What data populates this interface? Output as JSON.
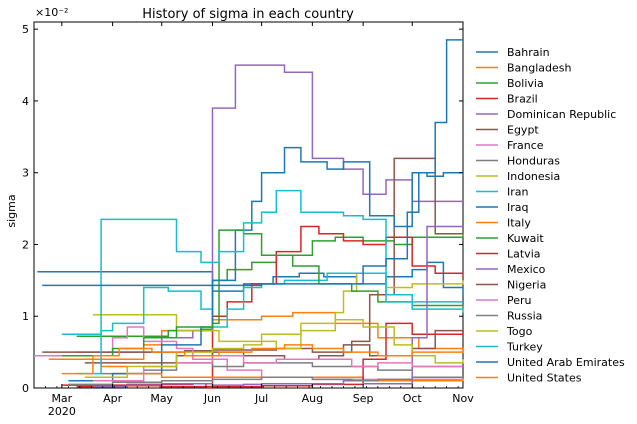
{
  "chart_data": {
    "type": "line",
    "title": "History of sigma in each country",
    "xlabel": "",
    "ylabel": "sigma",
    "y_multiplier_label": "×10⁻²",
    "xlim": [
      "2020-02-13",
      "2020-11-01"
    ],
    "ylim": [
      0,
      5.1
    ],
    "x_ticks": [
      {
        "date": "2020-03-01",
        "label": "Mar",
        "sublabel": "2020"
      },
      {
        "date": "2020-04-01",
        "label": "Apr"
      },
      {
        "date": "2020-05-01",
        "label": "May"
      },
      {
        "date": "2020-06-01",
        "label": "Jun"
      },
      {
        "date": "2020-07-01",
        "label": "Jul"
      },
      {
        "date": "2020-08-01",
        "label": "Aug"
      },
      {
        "date": "2020-09-01",
        "label": "Sep"
      },
      {
        "date": "2020-10-01",
        "label": "Oct"
      },
      {
        "date": "2020-11-01",
        "label": "Nov"
      }
    ],
    "y_ticks": [
      0,
      1,
      2,
      3,
      4,
      5
    ],
    "grid": false,
    "legend_position": "outside-right",
    "series": [
      {
        "name": "Bahrain",
        "color": "#1f77b4",
        "drawstyle": "steps-post",
        "x": [
          "2020-02-15",
          "2020-05-01",
          "2020-06-01",
          "2020-06-20",
          "2020-07-08",
          "2020-07-24",
          "2020-08-08",
          "2020-08-28",
          "2020-09-15",
          "2020-10-01",
          "2020-10-10",
          "2020-10-20",
          "2020-11-01"
        ],
        "y": [
          1.62,
          1.62,
          1.35,
          1.45,
          1.55,
          1.6,
          1.55,
          1.45,
          1.55,
          1.65,
          1.75,
          1.4,
          1.3
        ]
      },
      {
        "name": "Bangladesh",
        "color": "#ff7f0e",
        "drawstyle": "steps-post",
        "x": [
          "2020-03-20",
          "2020-04-20",
          "2020-05-01",
          "2020-06-01",
          "2020-07-01",
          "2020-07-20",
          "2020-08-15",
          "2020-09-10",
          "2020-10-05",
          "2020-11-01"
        ],
        "y": [
          0.4,
          0.6,
          0.8,
          0.95,
          1.0,
          1.05,
          0.9,
          0.7,
          0.55,
          0.5
        ]
      },
      {
        "name": "Bolivia",
        "color": "#2ca02c",
        "drawstyle": "steps-post",
        "x": [
          "2020-03-10",
          "2020-04-05",
          "2020-05-05",
          "2020-05-25",
          "2020-06-01",
          "2020-06-10",
          "2020-06-25",
          "2020-07-10",
          "2020-08-01",
          "2020-08-15",
          "2020-09-01",
          "2020-09-20",
          "2020-10-01",
          "2020-11-01"
        ],
        "y": [
          0.72,
          0.72,
          0.8,
          0.82,
          1.5,
          1.65,
          1.75,
          1.85,
          2.05,
          2.1,
          2.05,
          2.0,
          2.1,
          2.15
        ]
      },
      {
        "name": "Brazil",
        "color": "#d62728",
        "drawstyle": "steps-post",
        "x": [
          "2020-03-01",
          "2020-04-10",
          "2020-05-20",
          "2020-05-28",
          "2020-06-01",
          "2020-06-10",
          "2020-06-25",
          "2020-07-10",
          "2020-07-25",
          "2020-08-05",
          "2020-08-20",
          "2020-09-01",
          "2020-09-15",
          "2020-10-01",
          "2020-10-15",
          "2020-11-01"
        ],
        "y": [
          0.04,
          0.05,
          0.06,
          0.0,
          1.0,
          1.2,
          1.45,
          1.9,
          2.25,
          2.15,
          2.05,
          2.0,
          2.1,
          1.7,
          1.6,
          1.55
        ]
      },
      {
        "name": "Dominican Republic",
        "color": "#9467bd",
        "drawstyle": "steps-post",
        "x": [
          "2020-03-10",
          "2020-04-10",
          "2020-05-01",
          "2020-05-20",
          "2020-06-01",
          "2020-06-15",
          "2020-07-01",
          "2020-07-15",
          "2020-08-01",
          "2020-08-20",
          "2020-09-01",
          "2020-09-15",
          "2020-10-01",
          "2020-11-01"
        ],
        "y": [
          0.5,
          0.5,
          0.7,
          0.8,
          3.9,
          4.5,
          4.5,
          4.4,
          3.2,
          3.05,
          2.7,
          2.9,
          2.6,
          2.6
        ]
      },
      {
        "name": "Egypt",
        "color": "#8c564b",
        "drawstyle": "steps-post",
        "x": [
          "2020-02-18",
          "2020-03-15",
          "2020-04-15",
          "2020-05-15",
          "2020-06-01",
          "2020-06-20",
          "2020-07-10",
          "2020-08-01",
          "2020-08-25",
          "2020-09-05",
          "2020-09-20",
          "2020-10-01",
          "2020-10-15",
          "2020-11-01"
        ],
        "y": [
          0.5,
          0.5,
          0.5,
          0.52,
          0.53,
          0.53,
          0.55,
          0.5,
          0.65,
          1.3,
          3.2,
          3.2,
          2.15,
          2.15
        ]
      },
      {
        "name": "France",
        "color": "#e377c2",
        "drawstyle": "steps-post",
        "x": [
          "2020-02-13",
          "2020-03-25",
          "2020-04-01",
          "2020-04-10",
          "2020-04-20",
          "2020-05-10",
          "2020-05-20",
          "2020-06-10",
          "2020-07-01",
          "2020-08-01",
          "2020-09-01",
          "2020-10-01",
          "2020-11-01"
        ],
        "y": [
          0.45,
          0.45,
          0.7,
          0.85,
          0.65,
          0.55,
          0.4,
          0.25,
          0.15,
          0.12,
          0.12,
          0.12,
          0.1
        ]
      },
      {
        "name": "Honduras",
        "color": "#7f7f7f",
        "drawstyle": "steps-post",
        "x": [
          "2020-03-25",
          "2020-04-20",
          "2020-05-10",
          "2020-06-01",
          "2020-06-20",
          "2020-07-10",
          "2020-08-01",
          "2020-08-20",
          "2020-09-10",
          "2020-10-01",
          "2020-11-01"
        ],
        "y": [
          0.2,
          0.25,
          0.35,
          0.3,
          0.35,
          0.35,
          0.3,
          0.3,
          0.25,
          0.3,
          0.3
        ]
      },
      {
        "name": "Indonesia",
        "color": "#bcbd22",
        "drawstyle": "steps-post",
        "x": [
          "2020-03-20",
          "2020-04-15",
          "2020-05-10",
          "2020-06-05",
          "2020-07-10",
          "2020-07-25",
          "2020-08-15",
          "2020-08-20",
          "2020-08-28",
          "2020-09-15",
          "2020-10-01",
          "2020-11-01"
        ],
        "y": [
          1.02,
          1.02,
          0.8,
          0.65,
          0.55,
          0.8,
          1.05,
          1.35,
          1.6,
          1.4,
          1.45,
          1.5
        ]
      },
      {
        "name": "Iran",
        "color": "#17becf",
        "drawstyle": "steps-post",
        "x": [
          "2020-03-01",
          "2020-03-25",
          "2020-04-01",
          "2020-04-20",
          "2020-05-05",
          "2020-05-25",
          "2020-06-01",
          "2020-06-10",
          "2020-06-20",
          "2020-07-01",
          "2020-07-15",
          "2020-08-01",
          "2020-08-10",
          "2020-09-01",
          "2020-09-15",
          "2020-10-01",
          "2020-11-01"
        ],
        "y": [
          0.75,
          0.8,
          0.9,
          1.4,
          1.35,
          1.1,
          0.85,
          1.1,
          1.4,
          1.45,
          1.5,
          1.5,
          1.6,
          1.6,
          1.3,
          1.2,
          1.2
        ]
      },
      {
        "name": "Iraq",
        "color": "#1f77b4",
        "drawstyle": "steps-post",
        "x": [
          "2020-03-05",
          "2020-04-01",
          "2020-05-01",
          "2020-05-25",
          "2020-06-01",
          "2020-06-15",
          "2020-06-25",
          "2020-07-01",
          "2020-07-15",
          "2020-07-25",
          "2020-08-10",
          "2020-08-20",
          "2020-09-05",
          "2020-09-20",
          "2020-10-01",
          "2020-10-10",
          "2020-10-20",
          "2020-11-01"
        ],
        "y": [
          0.1,
          0.2,
          0.6,
          0.85,
          1.5,
          2.2,
          2.6,
          3.0,
          3.35,
          3.15,
          3.05,
          3.15,
          2.4,
          2.25,
          3.0,
          2.95,
          3.0,
          2.95
        ]
      },
      {
        "name": "Italy",
        "color": "#ff7f0e",
        "drawstyle": "steps-post",
        "x": [
          "2020-02-22",
          "2020-03-10",
          "2020-03-25",
          "2020-04-10",
          "2020-05-01",
          "2020-06-01",
          "2020-07-01",
          "2020-08-01",
          "2020-09-01",
          "2020-10-01",
          "2020-11-01"
        ],
        "y": [
          0.4,
          0.4,
          0.3,
          0.2,
          0.15,
          0.15,
          0.15,
          0.15,
          0.1,
          0.1,
          0.1
        ]
      },
      {
        "name": "Kuwait",
        "color": "#2ca02c",
        "drawstyle": "steps-post",
        "x": [
          "2020-03-01",
          "2020-04-01",
          "2020-04-20",
          "2020-05-10",
          "2020-06-01",
          "2020-06-05",
          "2020-06-20",
          "2020-07-01",
          "2020-07-20",
          "2020-08-05",
          "2020-08-25",
          "2020-09-10",
          "2020-10-01",
          "2020-11-01"
        ],
        "y": [
          0.45,
          0.55,
          0.7,
          0.85,
          0.9,
          2.2,
          2.15,
          1.85,
          1.7,
          1.45,
          1.35,
          1.2,
          1.15,
          1.1
        ]
      },
      {
        "name": "Latvia",
        "color": "#d62728",
        "drawstyle": "steps-post",
        "x": [
          "2020-03-10",
          "2020-04-01",
          "2020-05-01",
          "2020-06-01",
          "2020-07-01",
          "2020-08-01",
          "2020-09-01",
          "2020-09-15",
          "2020-10-01",
          "2020-11-01"
        ],
        "y": [
          0.02,
          0.03,
          0.02,
          0.02,
          0.03,
          0.05,
          0.4,
          0.9,
          0.75,
          0.8
        ]
      },
      {
        "name": "Mexico",
        "color": "#9467bd",
        "drawstyle": "steps-post",
        "x": [
          "2020-03-20",
          "2020-04-10",
          "2020-05-01",
          "2020-06-01",
          "2020-06-20",
          "2020-07-01",
          "2020-08-01",
          "2020-08-20",
          "2020-09-01",
          "2020-10-01",
          "2020-10-10",
          "2020-11-01"
        ],
        "y": [
          0.02,
          0.04,
          0.06,
          0.04,
          0.05,
          0.06,
          0.06,
          0.1,
          0.06,
          0.7,
          2.25,
          2.25
        ]
      },
      {
        "name": "Nigeria",
        "color": "#8c564b",
        "drawstyle": "steps-post",
        "x": [
          "2020-03-15",
          "2020-04-15",
          "2020-05-10",
          "2020-06-01",
          "2020-06-20",
          "2020-07-15",
          "2020-08-05",
          "2020-08-20",
          "2020-09-05",
          "2020-10-01",
          "2020-10-15",
          "2020-11-01"
        ],
        "y": [
          0.35,
          0.35,
          0.45,
          0.5,
          0.45,
          0.4,
          0.45,
          0.6,
          0.45,
          0.55,
          0.8,
          0.75
        ]
      },
      {
        "name": "Peru",
        "color": "#e377c2",
        "drawstyle": "steps-post",
        "x": [
          "2020-03-20",
          "2020-04-20",
          "2020-05-10",
          "2020-06-01",
          "2020-06-20",
          "2020-07-10",
          "2020-08-01",
          "2020-08-25",
          "2020-09-10",
          "2020-10-01",
          "2020-11-01"
        ],
        "y": [
          0.1,
          0.3,
          0.35,
          0.45,
          0.35,
          0.4,
          0.4,
          0.3,
          0.35,
          0.3,
          0.3
        ]
      },
      {
        "name": "Russia",
        "color": "#7f7f7f",
        "drawstyle": "steps-post",
        "x": [
          "2020-03-05",
          "2020-04-01",
          "2020-05-01",
          "2020-06-01",
          "2020-07-01",
          "2020-08-01",
          "2020-08-25",
          "2020-09-10",
          "2020-10-01",
          "2020-11-01"
        ],
        "y": [
          0.05,
          0.08,
          0.1,
          0.12,
          0.15,
          0.12,
          0.1,
          0.12,
          0.15,
          0.15
        ]
      },
      {
        "name": "Togo",
        "color": "#bcbd22",
        "drawstyle": "steps-post",
        "x": [
          "2020-03-15",
          "2020-04-10",
          "2020-05-10",
          "2020-06-01",
          "2020-06-20",
          "2020-07-01",
          "2020-07-25",
          "2020-08-15",
          "2020-09-01",
          "2020-09-20",
          "2020-10-01",
          "2020-10-15",
          "2020-11-01"
        ],
        "y": [
          0.15,
          0.3,
          0.5,
          0.55,
          0.6,
          0.75,
          0.9,
          0.95,
          0.85,
          0.6,
          0.45,
          0.35,
          0.4
        ]
      },
      {
        "name": "Turkey",
        "color": "#17becf",
        "drawstyle": "steps-post",
        "x": [
          "2020-03-10",
          "2020-03-25",
          "2020-04-20",
          "2020-05-10",
          "2020-05-25",
          "2020-06-05",
          "2020-06-20",
          "2020-07-01",
          "2020-07-10",
          "2020-07-25",
          "2020-08-20",
          "2020-09-01",
          "2020-09-15",
          "2020-10-01",
          "2020-11-01"
        ],
        "y": [
          0.2,
          2.35,
          2.35,
          1.9,
          1.75,
          1.9,
          2.3,
          2.45,
          2.75,
          2.45,
          2.4,
          2.35,
          1.2,
          1.1,
          1.05
        ]
      },
      {
        "name": "United Arab Emirates",
        "color": "#1f77b4",
        "drawstyle": "steps-post",
        "x": [
          "2020-02-18",
          "2020-03-20",
          "2020-04-15",
          "2020-05-10",
          "2020-06-01",
          "2020-07-01",
          "2020-08-01",
          "2020-09-01",
          "2020-09-15",
          "2020-09-28",
          "2020-10-05",
          "2020-10-15",
          "2020-10-22",
          "2020-11-01"
        ],
        "y": [
          1.43,
          1.43,
          1.43,
          1.43,
          1.43,
          1.45,
          1.45,
          1.7,
          1.8,
          2.45,
          3.0,
          3.7,
          4.85,
          4.85
        ]
      },
      {
        "name": "United States",
        "color": "#ff7f0e",
        "drawstyle": "steps-post",
        "x": [
          "2020-03-01",
          "2020-03-20",
          "2020-04-05",
          "2020-04-25",
          "2020-05-15",
          "2020-06-05",
          "2020-06-25",
          "2020-07-15",
          "2020-08-01",
          "2020-08-20",
          "2020-09-10",
          "2020-10-01",
          "2020-11-01"
        ],
        "y": [
          0.2,
          0.45,
          0.55,
          0.5,
          0.45,
          0.5,
          0.55,
          0.6,
          0.55,
          0.5,
          0.45,
          0.5,
          0.55
        ]
      }
    ]
  }
}
